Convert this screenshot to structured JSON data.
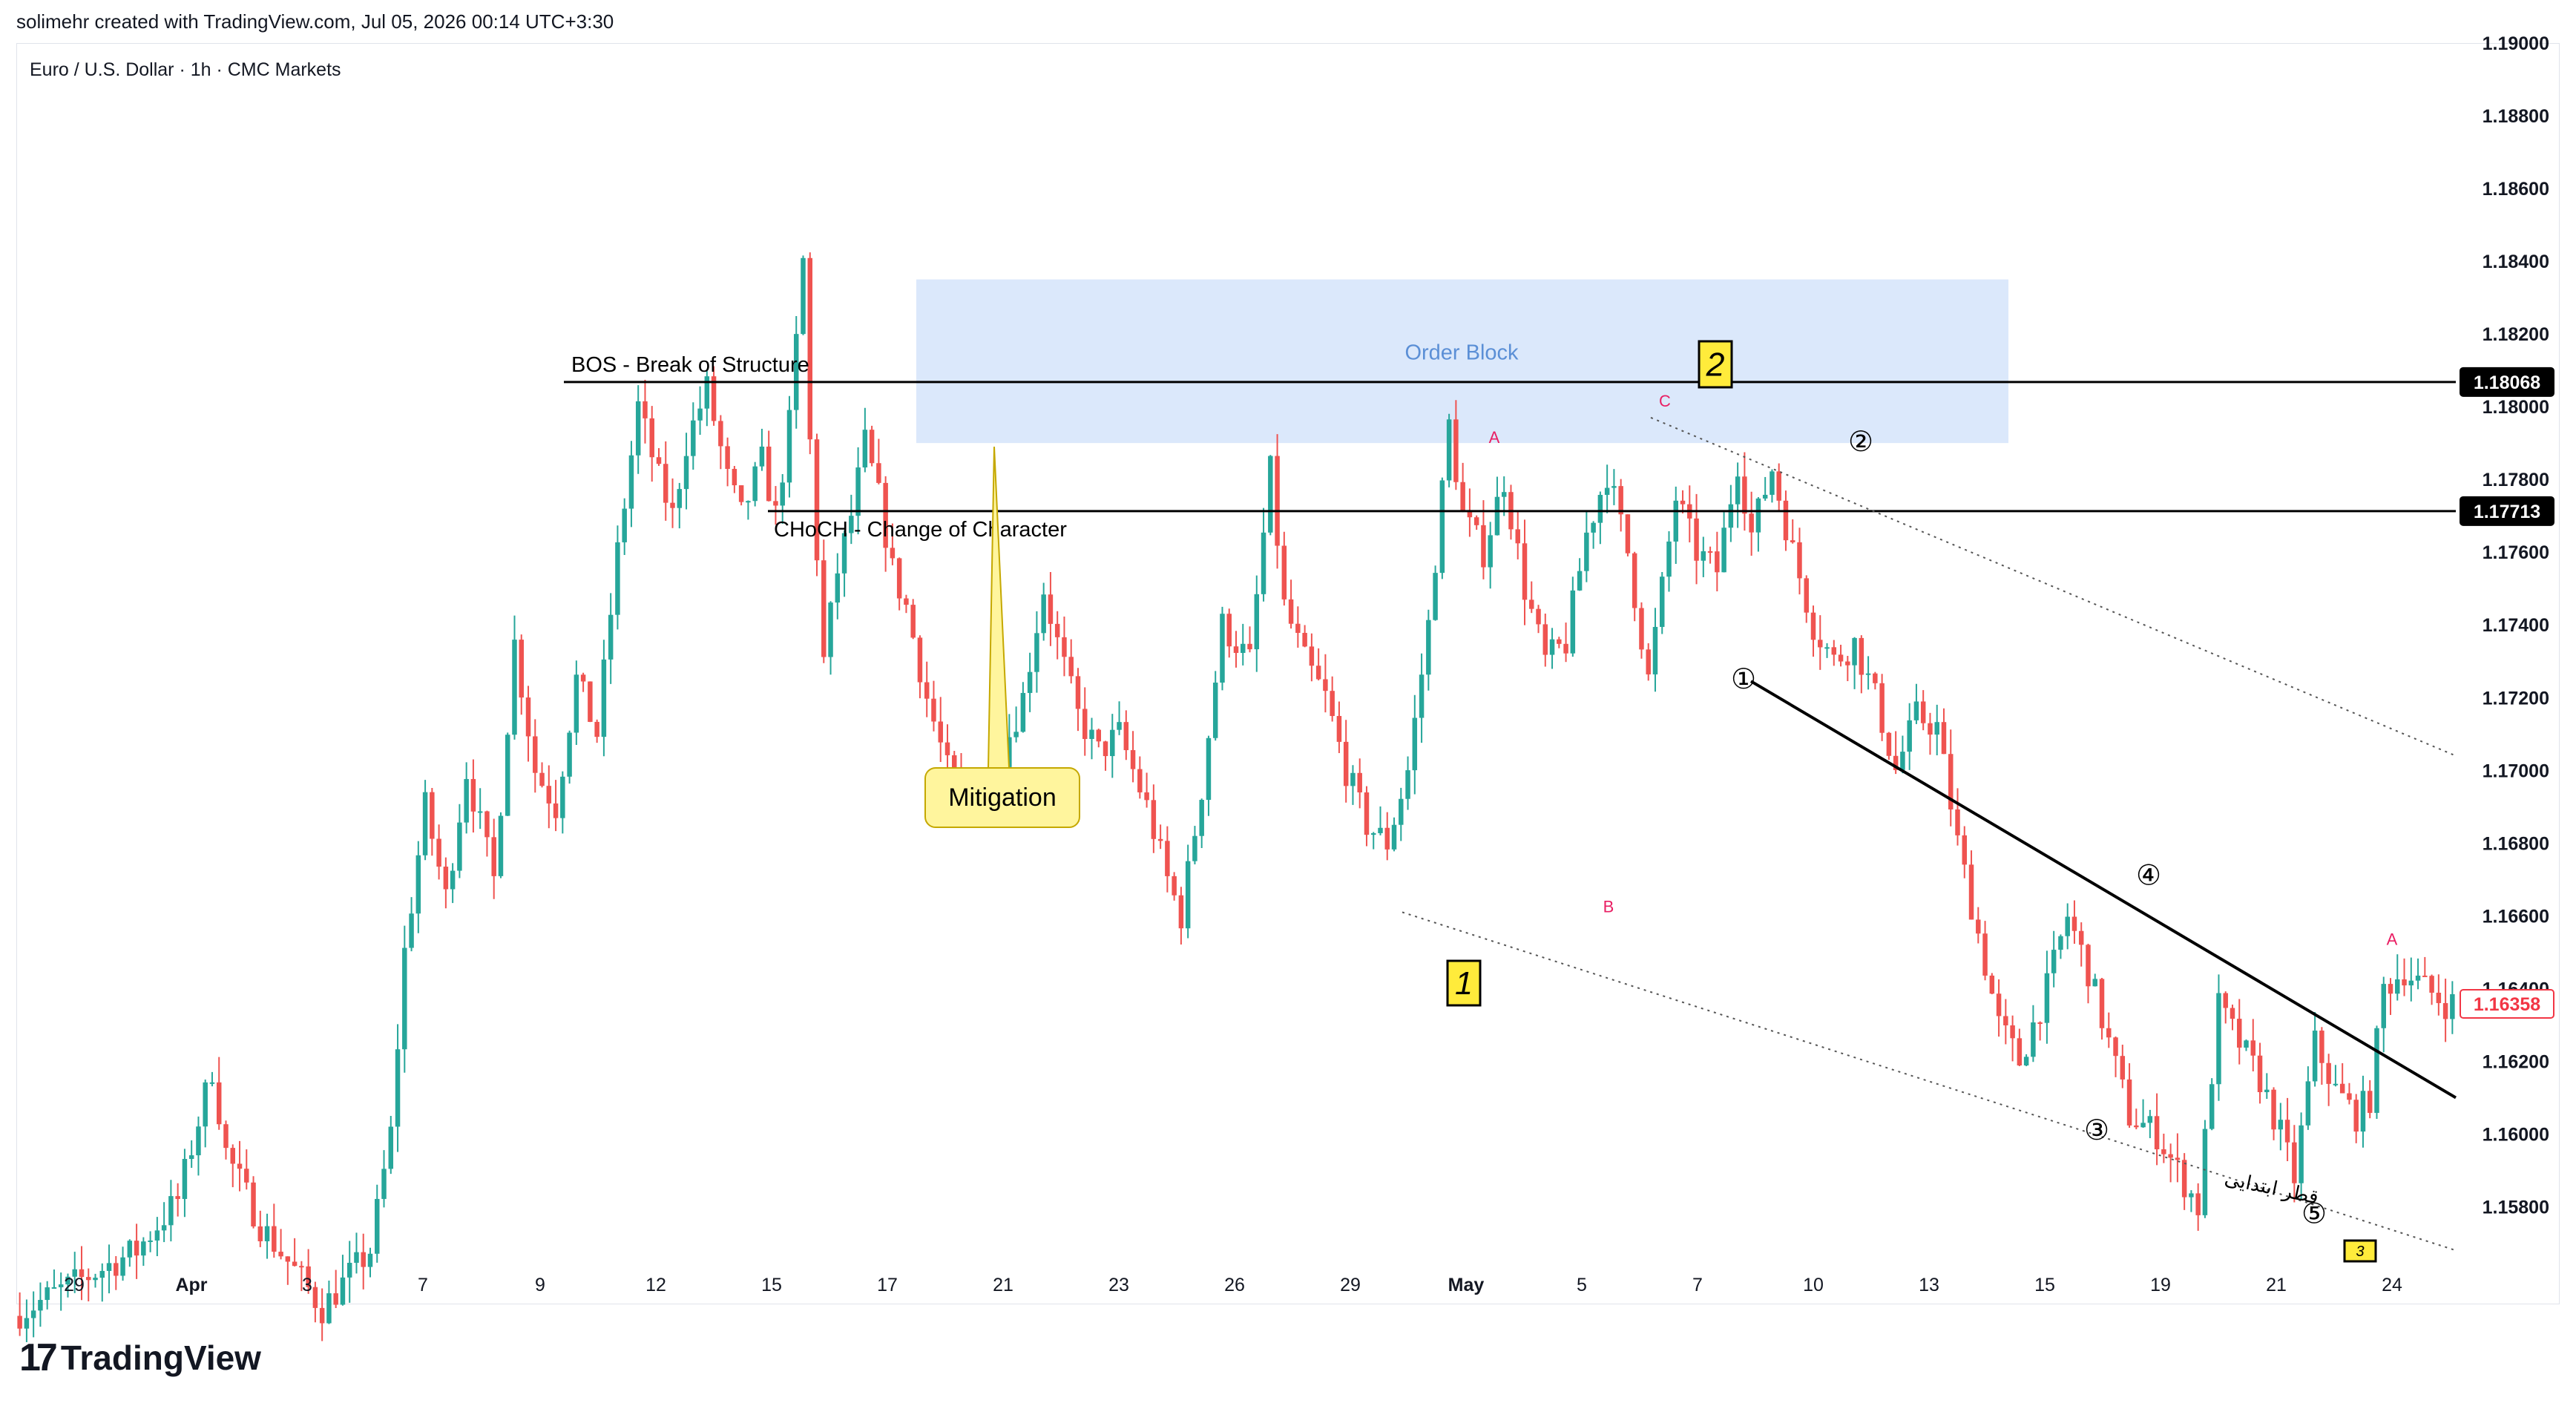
{
  "header": {
    "title": "solimehr created with TradingView.com, Jul 05, 2026 00:14 UTC+3:30"
  },
  "symbol": {
    "text": "Euro / U.S. Dollar · 1h · CMC Markets"
  },
  "brand": {
    "logo_mark": "17",
    "name": "TradingView"
  },
  "colors": {
    "up": "#26a69a",
    "down": "#ef5350",
    "order_block": "#dbe8fb",
    "line": "#000000",
    "price_tag": "#000000",
    "last_price": "#f23645",
    "label_yellow": "#ffeb3b"
  },
  "chart_data": {
    "type": "candlestick",
    "instrument": "Euro / U.S. Dollar",
    "timeframe": "1h",
    "y_axis": {
      "range": [
        1.1565,
        1.19
      ],
      "ticks": [
        "1.19000",
        "1.18800",
        "1.18600",
        "1.18400",
        "1.18200",
        "1.18000",
        "1.17800",
        "1.17600",
        "1.17400",
        "1.17200",
        "1.17000",
        "1.16800",
        "1.16600",
        "1.16400",
        "1.16200",
        "1.16000",
        "1.15800"
      ]
    },
    "x_axis": {
      "ticks": [
        "29",
        "Apr",
        "3",
        "7",
        "9",
        "12",
        "15",
        "17",
        "21",
        "23",
        "26",
        "29",
        "May",
        "5",
        "7",
        "10",
        "13",
        "15",
        "19",
        "21",
        "24"
      ]
    },
    "path": [
      [
        0,
        1.155
      ],
      [
        18,
        1.1568
      ],
      [
        24,
        1.1582
      ],
      [
        29,
        1.1618
      ],
      [
        31,
        1.1595
      ],
      [
        36,
        1.1575
      ],
      [
        42,
        1.156
      ],
      [
        45,
        1.1552
      ],
      [
        52,
        1.1568
      ],
      [
        55,
        1.16
      ],
      [
        57,
        1.165
      ],
      [
        60,
        1.169
      ],
      [
        63,
        1.1665
      ],
      [
        66,
        1.17
      ],
      [
        70,
        1.167
      ],
      [
        73,
        1.1735
      ],
      [
        76,
        1.17
      ],
      [
        79,
        1.169
      ],
      [
        82,
        1.1725
      ],
      [
        85,
        1.171
      ],
      [
        88,
        1.176
      ],
      [
        91,
        1.18
      ],
      [
        94,
        1.178
      ],
      [
        96,
        1.177
      ],
      [
        98,
        1.179
      ],
      [
        101,
        1.1805
      ],
      [
        104,
        1.178
      ],
      [
        106,
        1.177
      ],
      [
        109,
        1.1785
      ],
      [
        111,
        1.177
      ],
      [
        113,
        1.1795
      ],
      [
        115,
        1.184
      ],
      [
        116,
        1.179
      ],
      [
        118,
        1.173
      ],
      [
        120,
        1.1755
      ],
      [
        122,
        1.177
      ],
      [
        124,
        1.179
      ],
      [
        126,
        1.1775
      ],
      [
        128,
        1.1755
      ],
      [
        130,
        1.1745
      ],
      [
        133,
        1.172
      ],
      [
        136,
        1.17
      ],
      [
        140,
        1.169
      ],
      [
        144,
        1.1705
      ],
      [
        147,
        1.172
      ],
      [
        150,
        1.175
      ],
      [
        152,
        1.1735
      ],
      [
        155,
        1.1715
      ],
      [
        158,
        1.1705
      ],
      [
        161,
        1.171
      ],
      [
        165,
        1.169
      ],
      [
        168,
        1.167
      ],
      [
        170,
        1.166
      ],
      [
        173,
        1.1695
      ],
      [
        176,
        1.174
      ],
      [
        180,
        1.173
      ],
      [
        183,
        1.1782
      ],
      [
        185,
        1.1745
      ],
      [
        188,
        1.173
      ],
      [
        191,
        1.172
      ],
      [
        194,
        1.17
      ],
      [
        197,
        1.1685
      ],
      [
        200,
        1.168
      ],
      [
        203,
        1.17
      ],
      [
        206,
        1.174
      ],
      [
        209,
        1.1795
      ],
      [
        211,
        1.177
      ],
      [
        214,
        1.176
      ],
      [
        217,
        1.178
      ],
      [
        220,
        1.175
      ],
      [
        223,
        1.173
      ],
      [
        226,
        1.1735
      ],
      [
        229,
        1.1765
      ],
      [
        232,
        1.1782
      ],
      [
        235,
        1.176
      ],
      [
        238,
        1.1725
      ],
      [
        242,
        1.1775
      ],
      [
        245,
        1.176
      ],
      [
        248,
        1.1755
      ],
      [
        251,
        1.1785
      ],
      [
        253,
        1.1765
      ],
      [
        256,
        1.1783
      ],
      [
        259,
        1.176
      ],
      [
        262,
        1.174
      ],
      [
        265,
        1.173
      ],
      [
        268,
        1.1735
      ],
      [
        271,
        1.172
      ],
      [
        274,
        1.17
      ],
      [
        277,
        1.1715
      ],
      [
        280,
        1.1712
      ],
      [
        283,
        1.168
      ],
      [
        286,
        1.1655
      ],
      [
        289,
        1.163
      ],
      [
        292,
        1.162
      ],
      [
        296,
        1.164
      ],
      [
        299,
        1.166
      ],
      [
        302,
        1.1645
      ],
      [
        305,
        1.1625
      ],
      [
        308,
        1.1605
      ],
      [
        312,
        1.16
      ],
      [
        315,
        1.159
      ],
      [
        318,
        1.158
      ],
      [
        321,
        1.1635
      ],
      [
        324,
        1.1625
      ],
      [
        327,
        1.1615
      ],
      [
        330,
        1.16
      ],
      [
        332,
        1.1588
      ],
      [
        335,
        1.1625
      ],
      [
        338,
        1.1612
      ],
      [
        341,
        1.1605
      ],
      [
        343,
        1.161
      ],
      [
        345,
        1.164
      ],
      [
        348,
        1.1645
      ],
      [
        351,
        1.164
      ],
      [
        354,
        1.1636
      ]
    ],
    "price_lines": [
      {
        "name": "BOS",
        "label": "BOS - Break of Structure",
        "value": 1.18068,
        "tag": "1.18068"
      },
      {
        "name": "CHoCH",
        "label": "CHoCH - Change of Character",
        "value": 1.17713,
        "tag": "1.17713"
      }
    ],
    "last_price": {
      "value": 1.16358,
      "tag": "1.16358"
    },
    "order_block": {
      "label": "Order Block",
      "top": 1.1835,
      "bottom": 1.179
    },
    "annotations": {
      "mitigation": "Mitigation",
      "wave_a": "A",
      "wave_b": "B",
      "wave_c": "C",
      "wave_a2": "A",
      "box_1": "1",
      "box_2": "2",
      "box_3": "3",
      "impulse": [
        "①",
        "②",
        "③",
        "④",
        "⑤"
      ],
      "persian_note": "قطر ابتدایی"
    }
  }
}
